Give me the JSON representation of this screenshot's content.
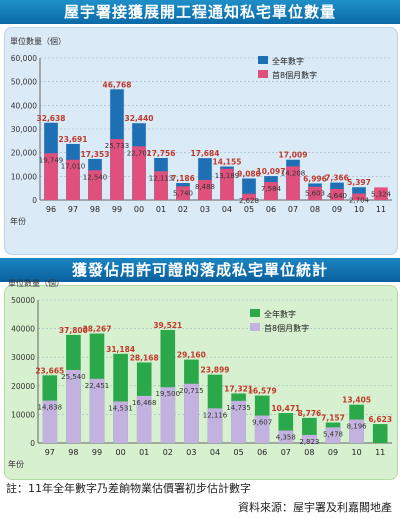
{
  "chart_data": [
    {
      "type": "bar",
      "title": "屋宇署接獲展開工程通知私宅單位數量",
      "ylabel": "單位數量（個）",
      "xlabel": "年份",
      "ylim": [
        0,
        60000
      ],
      "yticks": [
        "0",
        "10,000",
        "20,000",
        "30,000",
        "40,000",
        "50,000",
        "60,000"
      ],
      "categories": [
        "96",
        "97",
        "98",
        "99",
        "00",
        "01",
        "02",
        "03",
        "04",
        "05",
        "06",
        "07",
        "08",
        "09",
        "10",
        "11"
      ],
      "series": [
        {
          "name": "全年數字",
          "color": "#1f6fb5",
          "values": [
            32638,
            23691,
            17353,
            46768,
            32440,
            17756,
            7186,
            17684,
            14155,
            9080,
            10097,
            17009,
            6996,
            7366,
            5397,
            null
          ],
          "labels": [
            "32,638",
            "23,691",
            "17,353",
            "46,768",
            "32,440",
            "17,756",
            "7,186",
            "17,684",
            "14,155",
            "9,080",
            "10,097",
            "17,009",
            "6,996",
            "7,366",
            "5,397",
            ""
          ]
        },
        {
          "name": "首8個月數字",
          "color": "#e0507c",
          "values": [
            19749,
            17010,
            12540,
            25733,
            22702,
            12113,
            5740,
            8488,
            13189,
            2628,
            7584,
            14208,
            5603,
            4640,
            2704,
            5324
          ],
          "labels": [
            "19,749",
            "17,010",
            "12,540",
            "25,733",
            "22,702",
            "12,113",
            "5,740",
            "8,488",
            "13,189",
            "2,628",
            "7,584",
            "14,208",
            "5,603",
            "4,640",
            "2,704",
            "5,324"
          ]
        }
      ],
      "legend": "top-right"
    },
    {
      "type": "bar",
      "title": "獲發佔用許可證的落成私宅單位統計",
      "ylabel": "單位數量（個）",
      "xlabel": "年份",
      "ylim": [
        0,
        50000
      ],
      "yticks": [
        "0",
        "10000",
        "20000",
        "30000",
        "40000",
        "50000"
      ],
      "categories": [
        "97",
        "98",
        "99",
        "00",
        "01",
        "02",
        "03",
        "04",
        "05",
        "06",
        "07",
        "08",
        "09",
        "10",
        "11"
      ],
      "series": [
        {
          "name": "全年數字",
          "color": "#2aa84a",
          "values": [
            23665,
            37800,
            38267,
            31184,
            28168,
            39521,
            29160,
            23899,
            17321,
            16579,
            10471,
            8776,
            7157,
            13405,
            6623
          ],
          "labels": [
            "23,665",
            "37,800",
            "38,267",
            "31,184",
            "28,168",
            "39,521",
            "29,160",
            "23,899",
            "17,321",
            "16,579",
            "10,471",
            "8,776",
            "7,157",
            "13,405",
            "6,623"
          ]
        },
        {
          "name": "首8個月數字",
          "color": "#c3b2e0",
          "values": [
            14838,
            25540,
            22451,
            14531,
            16468,
            19500,
            20715,
            12116,
            14735,
            9607,
            4358,
            2823,
            5478,
            8196,
            null
          ],
          "labels": [
            "14,838",
            "25,540",
            "22,451",
            "14,531",
            "16,468",
            "19,500",
            "20,715",
            "12,116",
            "14,735",
            "9,607",
            "4,358",
            "2,823",
            "5,478",
            "8,196",
            ""
          ]
        }
      ],
      "legend": "top-right"
    }
  ],
  "notes": {
    "note": "註：11年全年數字乃差餉物業估價署初步估計數字",
    "source": "資料來源：屋宇署及利嘉閣地產"
  }
}
